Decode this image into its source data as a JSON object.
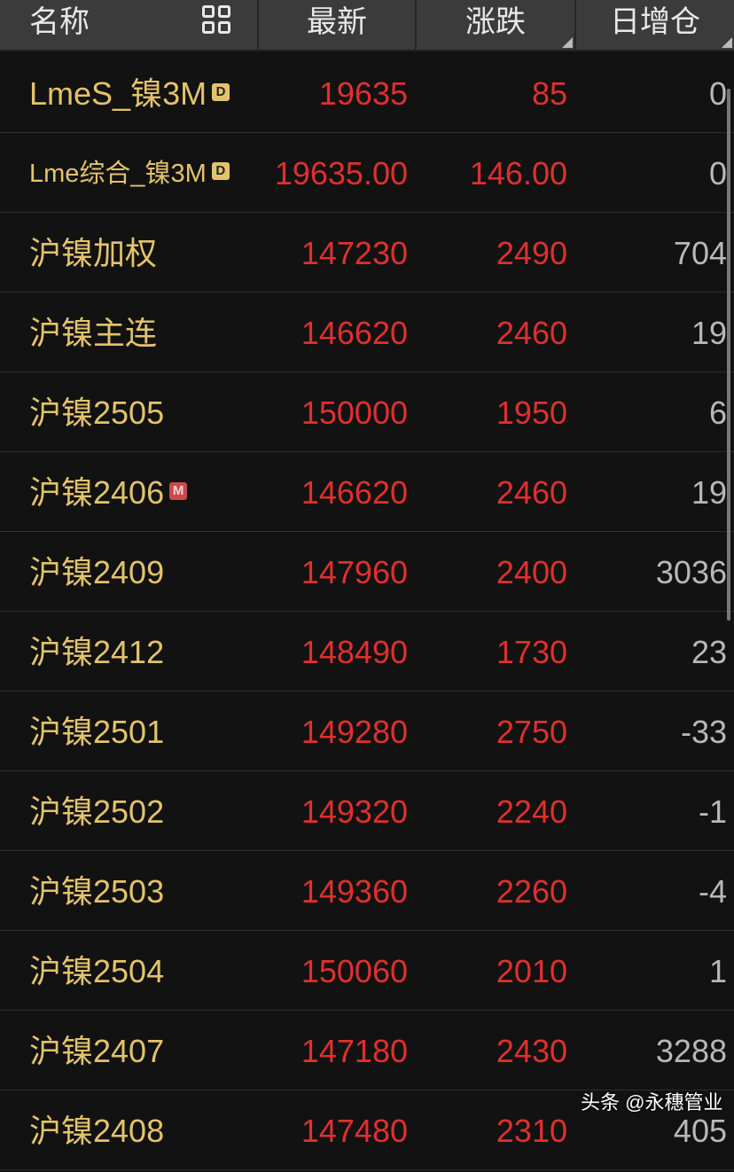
{
  "header": {
    "name": "名称",
    "last": "最新",
    "change": "涨跌",
    "oi_change": "日增仓",
    "icon": "grid-icon",
    "sort_indicator": "triangle-corner"
  },
  "colors": {
    "name": "#e3c36b",
    "up": "#e0302e",
    "neutral": "#b8b8b8",
    "header_bg": "#3b3b3b",
    "bg": "#121212"
  },
  "rows": [
    {
      "name": "LmeS_镍3M",
      "badge": "D",
      "last": "19635",
      "change": "85",
      "oi": "0"
    },
    {
      "name": "Lme综合_镍3M",
      "badge": "D",
      "last": "19635.00",
      "change": "146.00",
      "oi": "0"
    },
    {
      "name": "沪镍加权",
      "badge": "",
      "last": "147230",
      "change": "2490",
      "oi": "704"
    },
    {
      "name": "沪镍主连",
      "badge": "",
      "last": "146620",
      "change": "2460",
      "oi": "19"
    },
    {
      "name": "沪镍2505",
      "badge": "",
      "last": "150000",
      "change": "1950",
      "oi": "6"
    },
    {
      "name": "沪镍2406",
      "badge": "M",
      "last": "146620",
      "change": "2460",
      "oi": "19"
    },
    {
      "name": "沪镍2409",
      "badge": "",
      "last": "147960",
      "change": "2400",
      "oi": "3036"
    },
    {
      "name": "沪镍2412",
      "badge": "",
      "last": "148490",
      "change": "1730",
      "oi": "23"
    },
    {
      "name": "沪镍2501",
      "badge": "",
      "last": "149280",
      "change": "2750",
      "oi": "-33"
    },
    {
      "name": "沪镍2502",
      "badge": "",
      "last": "149320",
      "change": "2240",
      "oi": "-1"
    },
    {
      "name": "沪镍2503",
      "badge": "",
      "last": "149360",
      "change": "2260",
      "oi": "-4"
    },
    {
      "name": "沪镍2504",
      "badge": "",
      "last": "150060",
      "change": "2010",
      "oi": "1"
    },
    {
      "name": "沪镍2407",
      "badge": "",
      "last": "147180",
      "change": "2430",
      "oi": "3288"
    },
    {
      "name": "沪镍2408",
      "badge": "",
      "last": "147480",
      "change": "2310",
      "oi": "405"
    }
  ],
  "watermark": "头条 @永穗管业"
}
